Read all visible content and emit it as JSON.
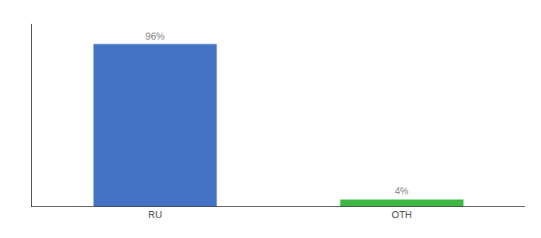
{
  "chart_data": {
    "type": "bar",
    "categories": [
      "RU",
      "OTH"
    ],
    "values": [
      96,
      4
    ],
    "value_labels": [
      "96%",
      "4%"
    ],
    "colors": [
      "#4472c4",
      "#3cb843"
    ],
    "data_labels": true,
    "ylim": [
      0,
      108
    ],
    "tick_labels": "x",
    "grid": false
  }
}
